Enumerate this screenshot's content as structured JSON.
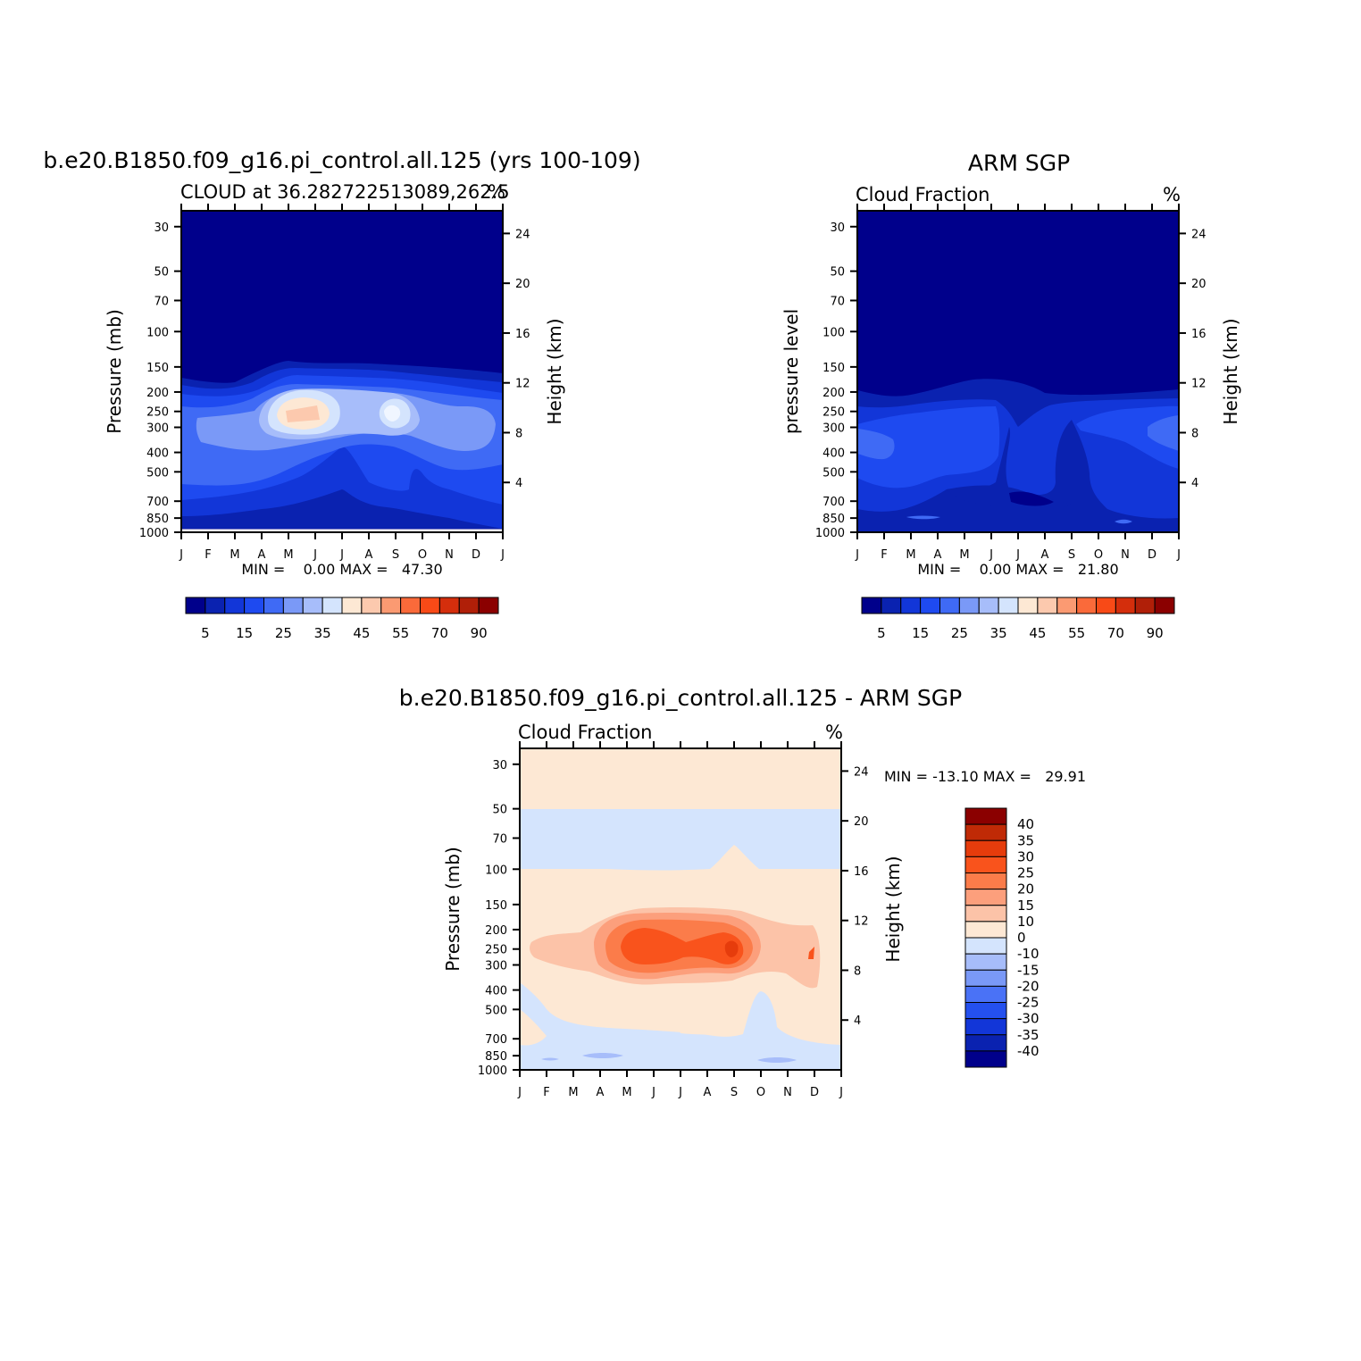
{
  "chart_data": [
    {
      "type": "contour",
      "title": "b.e20.B1850.f09_g16.pi_control.all.125 (yrs 100-109)",
      "subtitle_left": "CLOUD at 36.282722513089,262.5",
      "subtitle_right": "%",
      "ylabel": "Pressure (mb)",
      "y2label": "Height (km)",
      "x_ticks": [
        "J",
        "F",
        "M",
        "A",
        "M",
        "J",
        "J",
        "A",
        "S",
        "O",
        "N",
        "D",
        "J"
      ],
      "y_ticks": [
        "30",
        "50",
        "70",
        "100",
        "150",
        "200",
        "250",
        "300",
        "400",
        "500",
        "700",
        "850",
        "1000"
      ],
      "y_tick_values": [
        30,
        50,
        70,
        100,
        150,
        200,
        250,
        300,
        400,
        500,
        700,
        850,
        1000
      ],
      "y2_ticks": [
        "24",
        "20",
        "16",
        "12",
        "8",
        "4"
      ],
      "y2_tick_values": [
        24,
        20,
        16,
        12,
        8,
        4
      ],
      "ylim": [
        1000,
        25
      ],
      "stats": "MIN =    0.00 MAX =   47.30",
      "colorbar": {
        "labels": [
          "5",
          "15",
          "25",
          "35",
          "45",
          "55",
          "70",
          "90"
        ],
        "colors": [
          "#00008b",
          "#0a22b0",
          "#1236d8",
          "#1e4af0",
          "#3f6af5",
          "#7a99f7",
          "#a7bdfa",
          "#d4e4fd",
          "#fde8d4",
          "#fcc9ae",
          "#fb9a72",
          "#fa6a3a",
          "#f84a17",
          "#d42e0c",
          "#b01f08",
          "#8b0000"
        ]
      },
      "contours": [
        {
          "level": 1,
          "color": "#00008b"
        },
        {
          "level": 5,
          "color": "#0a22b0"
        },
        {
          "level": 10,
          "color": "#1236d8"
        },
        {
          "level": 15,
          "color": "#1e4af0"
        },
        {
          "level": 20,
          "color": "#3f6af5"
        },
        {
          "level": 25,
          "color": "#7a99f7"
        },
        {
          "level": 30,
          "color": "#a7bdfa"
        },
        {
          "level": 35,
          "color": "#d4e4fd"
        },
        {
          "level": 40,
          "color": "#fde8d4"
        },
        {
          "level": 45,
          "color": "#fcc9ae"
        }
      ]
    },
    {
      "type": "contour",
      "title": "ARM SGP",
      "subtitle_left": "Cloud Fraction",
      "subtitle_right": "%",
      "ylabel": "pressure level",
      "y2label": "Height (km)",
      "x_ticks": [
        "J",
        "F",
        "M",
        "A",
        "M",
        "J",
        "J",
        "A",
        "S",
        "O",
        "N",
        "D",
        "J"
      ],
      "y_ticks": [
        "30",
        "50",
        "70",
        "100",
        "150",
        "200",
        "250",
        "300",
        "400",
        "500",
        "700",
        "850",
        "1000"
      ],
      "y2_ticks": [
        "24",
        "20",
        "16",
        "12",
        "8",
        "4"
      ],
      "stats": "MIN =    0.00 MAX =   21.80",
      "colorbar": {
        "labels": [
          "5",
          "15",
          "25",
          "35",
          "45",
          "55",
          "70",
          "90"
        ]
      }
    },
    {
      "type": "contour",
      "title": "b.e20.B1850.f09_g16.pi_control.all.125 - ARM SGP",
      "subtitle_left": "Cloud Fraction",
      "subtitle_right": "%",
      "ylabel": "Pressure (mb)",
      "y2label": "Height (km)",
      "x_ticks": [
        "J",
        "F",
        "M",
        "A",
        "M",
        "J",
        "J",
        "A",
        "S",
        "O",
        "N",
        "D",
        "J"
      ],
      "y_ticks": [
        "30",
        "50",
        "70",
        "100",
        "150",
        "200",
        "250",
        "300",
        "400",
        "500",
        "700",
        "850",
        "1000"
      ],
      "y2_ticks": [
        "24",
        "20",
        "16",
        "12",
        "8",
        "4"
      ],
      "stats": "MIN = -13.10 MAX =   29.91",
      "colorbar": {
        "labels": [
          "40",
          "35",
          "30",
          "25",
          "20",
          "15",
          "10",
          "0",
          "-10",
          "-15",
          "-20",
          "-25",
          "-30",
          "-35",
          "-40"
        ],
        "colors": [
          "#8b0000",
          "#c02a06",
          "#e63c0c",
          "#f9531c",
          "#fb7c4a",
          "#fc9f7c",
          "#fcc3a8",
          "#fde8d4",
          "#d4e4fd",
          "#a7bdfa",
          "#7a99f7",
          "#4a72f6",
          "#2450ee",
          "#1236d8",
          "#0a22b0",
          "#00008b"
        ]
      }
    }
  ]
}
